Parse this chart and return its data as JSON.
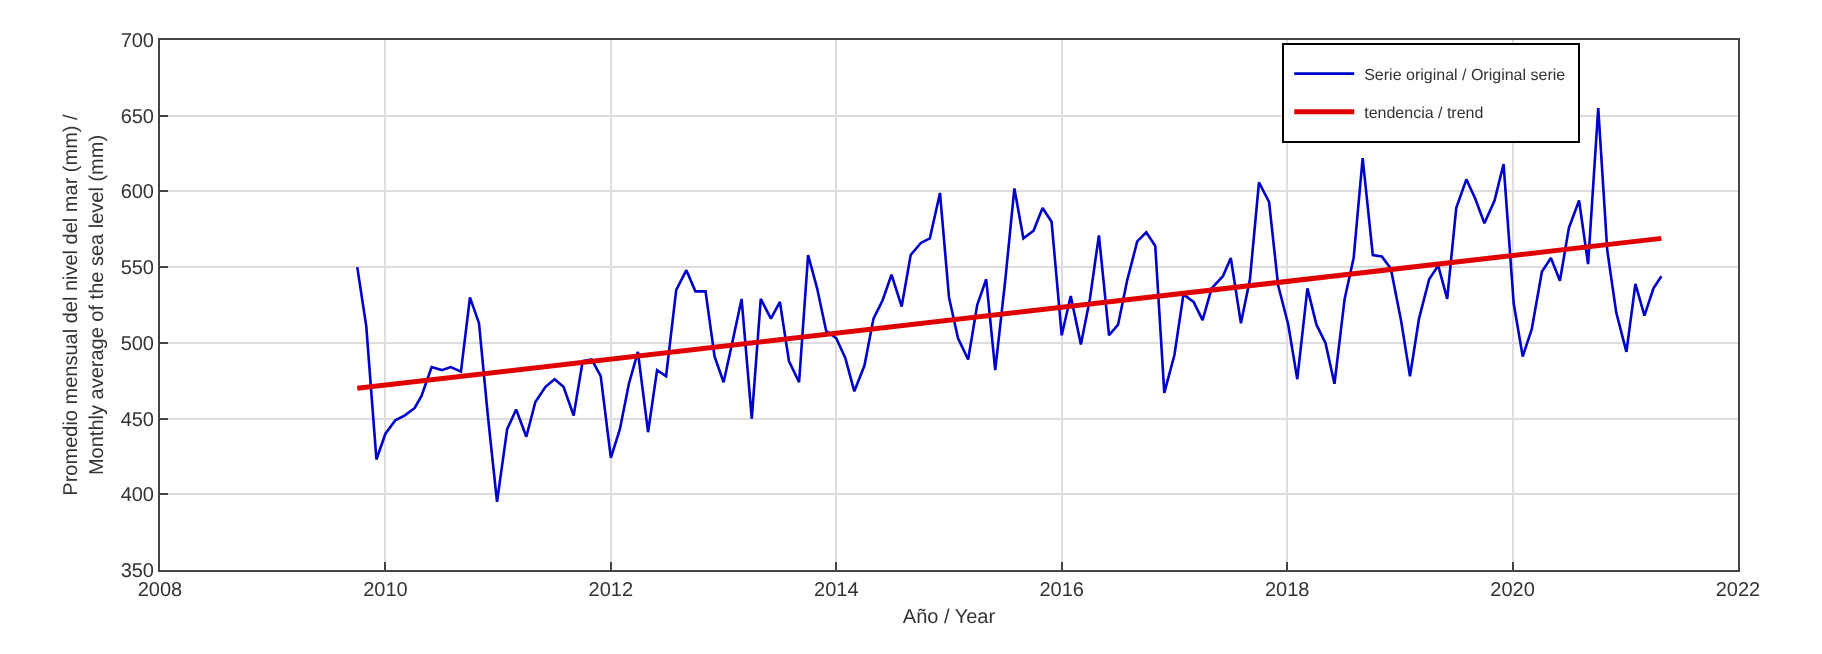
{
  "chart_data": {
    "type": "line",
    "xlabel": "Año / Year",
    "ylabel": "Promedio mensual del nivel del mar (mm) /\nMonthly average of the sea level (mm)",
    "xlim": [
      2008,
      2022
    ],
    "xticks": [
      2008,
      2010,
      2012,
      2014,
      2016,
      2018,
      2020,
      2022
    ],
    "ylim": [
      350,
      700
    ],
    "yticks": [
      350,
      400,
      450,
      500,
      550,
      600,
      650,
      700
    ],
    "grid": true,
    "legend": "top right",
    "line_style": "solid",
    "marker": "none",
    "series": [
      {
        "name": "Serie original / Original serie",
        "color": "#0000cc",
        "x": [
          2009.75,
          2009.83,
          2009.92,
          2010.0,
          2010.09,
          2010.17,
          2010.26,
          2010.32,
          2010.41,
          2010.5,
          2010.58,
          2010.67,
          2010.75,
          2010.83,
          2010.91,
          2010.99,
          2011.08,
          2011.16,
          2011.25,
          2011.33,
          2011.42,
          2011.5,
          2011.58,
          2011.67,
          2011.75,
          2011.83,
          2011.91,
          2012.0,
          2012.08,
          2012.16,
          2012.24,
          2012.33,
          2012.41,
          2012.49,
          2012.58,
          2012.67,
          2012.75,
          2012.84,
          2012.92,
          2013.0,
          2013.08,
          2013.16,
          2013.25,
          2013.33,
          2013.42,
          2013.5,
          2013.58,
          2013.67,
          2013.75,
          2013.83,
          2013.91,
          2014.0,
          2014.08,
          2014.16,
          2014.25,
          2014.33,
          2014.41,
          2014.49,
          2014.58,
          2014.66,
          2014.75,
          2014.83,
          2014.92,
          2015.0,
          2015.08,
          2015.17,
          2015.25,
          2015.33,
          2015.41,
          2015.5,
          2015.58,
          2015.66,
          2015.75,
          2015.83,
          2015.91,
          2016.0,
          2016.08,
          2016.17,
          2016.25,
          2016.33,
          2016.42,
          2016.5,
          2016.58,
          2016.67,
          2016.75,
          2016.83,
          2016.91,
          2017.0,
          2017.08,
          2017.17,
          2017.25,
          2017.33,
          2017.43,
          2017.5,
          2017.59,
          2017.67,
          2017.75,
          2017.84,
          2017.92,
          2018.01,
          2018.09,
          2018.18,
          2018.26,
          2018.34,
          2018.42,
          2018.51,
          2018.59,
          2018.67,
          2018.76,
          2018.84,
          2018.92,
          2019.01,
          2019.09,
          2019.17,
          2019.26,
          2019.34,
          2019.42,
          2019.5,
          2019.59,
          2019.67,
          2019.75,
          2019.84,
          2019.92,
          2020.01,
          2020.09,
          2020.17,
          2020.26,
          2020.34,
          2020.42,
          2020.5,
          2020.59,
          2020.67,
          2020.76,
          2020.84,
          2020.92,
          2021.01,
          2021.09,
          2021.17,
          2021.25,
          2021.32
        ],
        "values": [
          550,
          511,
          423,
          440,
          449,
          452,
          457,
          465,
          484,
          482,
          484,
          481,
          530,
          513,
          451,
          395,
          443,
          456,
          438,
          461,
          471,
          476,
          471,
          452,
          488,
          489,
          478,
          424,
          443,
          473,
          494,
          441,
          482,
          478,
          535,
          548,
          534,
          534,
          491,
          474,
          501,
          529,
          450,
          529,
          516,
          527,
          488,
          474,
          558,
          536,
          508,
          503,
          490,
          468,
          485,
          516,
          528,
          545,
          524,
          558,
          566,
          569,
          599,
          530,
          503,
          489,
          525,
          542,
          482,
          542,
          602,
          569,
          574,
          589,
          580,
          505,
          531,
          499,
          529,
          571,
          505,
          512,
          541,
          567,
          573,
          564,
          467,
          492,
          532,
          527,
          515,
          536,
          544,
          556,
          513,
          542,
          606,
          593,
          538,
          512,
          476,
          536,
          512,
          500,
          473,
          529,
          556,
          622,
          558,
          557,
          549,
          515,
          478,
          516,
          542,
          551,
          529,
          589,
          608,
          595,
          579,
          594,
          618,
          526,
          491,
          509,
          547,
          556,
          541,
          576,
          594,
          552,
          655,
          561,
          520,
          494,
          539,
          518,
          536,
          544
        ]
      },
      {
        "name": "tendencia / trend",
        "color": "#e00000",
        "x": [
          2009.75,
          2021.32
        ],
        "values": [
          470,
          569
        ]
      }
    ]
  }
}
